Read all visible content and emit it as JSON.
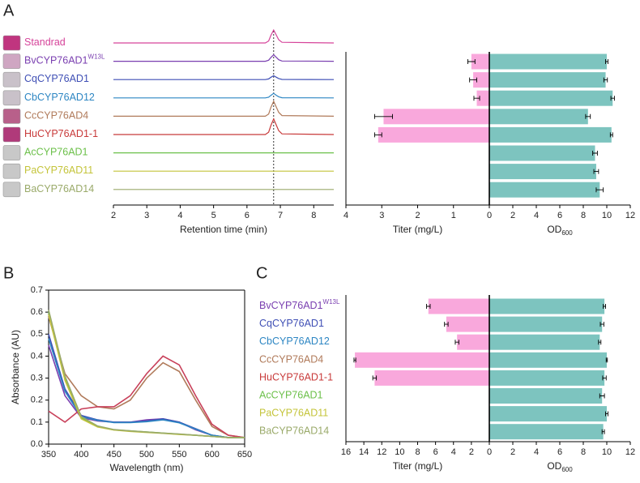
{
  "panel_labels": [
    "A",
    "B",
    "C"
  ],
  "chart_data": [
    {
      "type": "chromatogram",
      "xlabel": "Retention time (min)",
      "xlim": [
        2,
        8.6
      ],
      "xticks": [
        2,
        3,
        4,
        5,
        6,
        7,
        8
      ],
      "reference_x": 6.8,
      "x": [
        2,
        6.55,
        6.65,
        6.72,
        6.8,
        6.88,
        6.95,
        7.05,
        8.6
      ],
      "series": [
        {
          "name": "Standrad",
          "color": "#d6449a",
          "tube_color": "#c0357f",
          "values": [
            0,
            0,
            0.15,
            0.6,
            1,
            0.6,
            0.25,
            0.05,
            0
          ]
        },
        {
          "name": "BvCYP76AD1",
          "superscript": "W13L",
          "color": "#7a3fb0",
          "tube_color": "#cfa6c2",
          "values": [
            0,
            0,
            0.08,
            0.3,
            0.5,
            0.3,
            0.12,
            0.02,
            0
          ]
        },
        {
          "name": "CqCYP76AD1",
          "color": "#3f4fb5",
          "tube_color": "#c9c1c9",
          "values": [
            0,
            0,
            0.05,
            0.18,
            0.3,
            0.18,
            0.08,
            0.01,
            0
          ]
        },
        {
          "name": "CbCYP76AD12",
          "color": "#2d86c3",
          "tube_color": "#c9c1c9",
          "values": [
            0,
            0,
            0.05,
            0.2,
            0.35,
            0.2,
            0.09,
            0.01,
            0
          ]
        },
        {
          "name": "CcCYP76AD4",
          "color": "#b07a5a",
          "tube_color": "#b8608a",
          "values": [
            0,
            0,
            0.17,
            0.7,
            1.15,
            0.7,
            0.3,
            0.05,
            0
          ]
        },
        {
          "name": "HuCYP76AD1-1",
          "color": "#c83a3a",
          "tube_color": "#b03a7a",
          "values": [
            0,
            0,
            0.18,
            0.72,
            1.2,
            0.72,
            0.3,
            0.05,
            0
          ]
        },
        {
          "name": "AcCYP76AD1",
          "color": "#6cc04a",
          "tube_color": "#c8c8c8",
          "values": [
            0,
            0,
            0,
            0,
            0,
            0,
            0,
            0,
            0
          ]
        },
        {
          "name": "PaCYP76AD11",
          "color": "#c4c43a",
          "tube_color": "#c8c8c8",
          "values": [
            0,
            0,
            0,
            0,
            0,
            0,
            0,
            0,
            0
          ]
        },
        {
          "name": "BaCYP76AD14",
          "color": "#9aaa6a",
          "tube_color": "#c8c8c8",
          "values": [
            0,
            0,
            0,
            0,
            0,
            0,
            0,
            0,
            0
          ]
        }
      ]
    },
    {
      "type": "butterfly_bar",
      "left": {
        "xlabel": "Titer (mg/L)",
        "xlim": [
          4,
          0
        ],
        "xticks": [
          4,
          3,
          2,
          1,
          0
        ],
        "color": "#f9a8dc",
        "values": [
          0.5,
          0.45,
          0.35,
          2.95,
          3.1,
          0,
          0,
          0
        ],
        "errors": [
          0.1,
          0.1,
          0.08,
          0.25,
          0.1,
          0,
          0,
          0
        ]
      },
      "right": {
        "xlabel": "OD",
        "xlabel_sub": "600",
        "xlim": [
          0,
          12
        ],
        "xticks": [
          0,
          2,
          4,
          6,
          8,
          10,
          12
        ],
        "color": "#7dc4bf",
        "values": [
          10.0,
          9.9,
          10.5,
          8.4,
          10.4,
          9.0,
          9.1,
          9.4
        ],
        "errors": [
          0.1,
          0.15,
          0.15,
          0.2,
          0.1,
          0.2,
          0.2,
          0.3
        ]
      }
    },
    {
      "type": "line",
      "xlabel": "Wavelength (nm)",
      "ylabel": "Absorbance (AU)",
      "xlim": [
        350,
        650
      ],
      "xticks": [
        350,
        400,
        450,
        500,
        550,
        600,
        650
      ],
      "ylim": [
        0,
        0.7
      ],
      "yticks": [
        {
          "value": 0,
          "label": "0.0"
        },
        0.1,
        0.2,
        0.3,
        0.4,
        0.5,
        0.6,
        0.7
      ],
      "x": [
        350,
        375,
        400,
        425,
        450,
        475,
        500,
        525,
        550,
        575,
        600,
        625,
        650
      ],
      "series": [
        {
          "color": "#7a3fb0",
          "values": [
            0.45,
            0.22,
            0.12,
            0.105,
            0.1,
            0.1,
            0.11,
            0.115,
            0.1,
            0.065,
            0.04,
            0.03,
            0.03
          ]
        },
        {
          "color": "#3f4fb5",
          "values": [
            0.5,
            0.25,
            0.13,
            0.11,
            0.1,
            0.1,
            0.105,
            0.115,
            0.1,
            0.07,
            0.04,
            0.03,
            0.03
          ]
        },
        {
          "color": "#2d86c3",
          "values": [
            0.48,
            0.24,
            0.125,
            0.108,
            0.098,
            0.098,
            0.102,
            0.11,
            0.097,
            0.068,
            0.04,
            0.03,
            0.03
          ]
        },
        {
          "color": "#b07a5a",
          "values": [
            0.58,
            0.32,
            0.22,
            0.17,
            0.16,
            0.2,
            0.3,
            0.37,
            0.33,
            0.2,
            0.08,
            0.04,
            0.03
          ]
        },
        {
          "color": "#c8405a",
          "values": [
            0.15,
            0.1,
            0.16,
            0.17,
            0.17,
            0.22,
            0.32,
            0.4,
            0.36,
            0.22,
            0.09,
            0.04,
            0.03
          ]
        },
        {
          "color": "#6cc04a",
          "values": [
            0.6,
            0.3,
            0.12,
            0.08,
            0.065,
            0.06,
            0.055,
            0.05,
            0.045,
            0.04,
            0.035,
            0.03,
            0.03
          ]
        },
        {
          "color": "#c4c43a",
          "values": [
            0.59,
            0.29,
            0.115,
            0.078,
            0.064,
            0.058,
            0.053,
            0.049,
            0.044,
            0.04,
            0.035,
            0.03,
            0.03
          ]
        },
        {
          "color": "#9aaa6a",
          "values": [
            0.61,
            0.31,
            0.125,
            0.082,
            0.066,
            0.06,
            0.055,
            0.05,
            0.046,
            0.04,
            0.035,
            0.03,
            0.03
          ]
        }
      ]
    },
    {
      "type": "butterfly_bar",
      "categories": [
        "BvCYP76AD1",
        "CqCYP76AD1",
        "CbCYP76AD12",
        "CcCYP76AD4",
        "HuCYP76AD1-1",
        "AcCYP76AD1",
        "PaCYP76AD11",
        "BaCYP76AD14"
      ],
      "category_superscript": {
        "index": 0,
        "text": "W13L"
      },
      "label_colors": [
        "#7a3fb0",
        "#3f4fb5",
        "#2d86c3",
        "#b07a5a",
        "#c83a3a",
        "#6cc04a",
        "#c4c43a",
        "#9aaa6a"
      ],
      "left": {
        "xlabel": "Titer (mg/L)",
        "xlim": [
          16,
          0
        ],
        "xticks": [
          16,
          14,
          12,
          10,
          8,
          6,
          4,
          2,
          0
        ],
        "color": "#f9a8dc",
        "values": [
          6.8,
          4.8,
          3.6,
          15,
          12.8,
          0,
          0,
          0
        ],
        "errors": [
          0.2,
          0.2,
          0.2,
          0.1,
          0.2,
          0,
          0,
          0
        ]
      },
      "right": {
        "xlabel": "OD",
        "xlabel_sub": "600",
        "xlim": [
          0,
          12
        ],
        "xticks": [
          0,
          2,
          4,
          6,
          8,
          10,
          12
        ],
        "color": "#7dc4bf",
        "values": [
          9.8,
          9.6,
          9.4,
          10.0,
          9.8,
          9.6,
          10.0,
          9.7
        ],
        "errors": [
          0.1,
          0.15,
          0.1,
          0.05,
          0.15,
          0.2,
          0.1,
          0.1
        ]
      }
    }
  ]
}
